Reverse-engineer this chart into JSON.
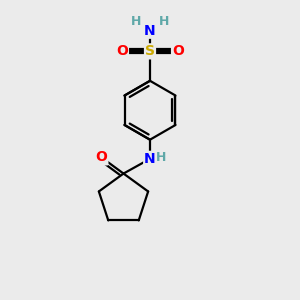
{
  "bg_color": "#ebebeb",
  "atom_colors": {
    "C": "#000000",
    "H": "#5fa8a8",
    "N": "#0000ff",
    "O": "#ff0000",
    "S": "#ccaa00"
  },
  "bond_color": "#000000",
  "bond_width": 1.6,
  "figsize": [
    3.0,
    3.0
  ],
  "dpi": 100
}
